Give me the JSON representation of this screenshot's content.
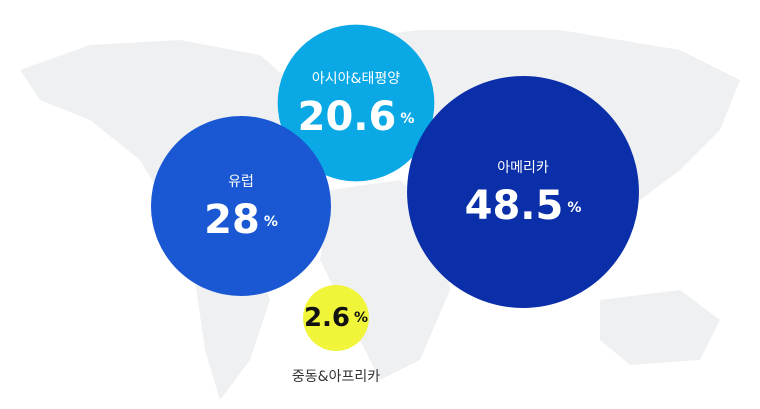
{
  "chart_data": {
    "type": "bubble",
    "unit": "%",
    "categories": [
      "아시아&태평양",
      "유럽",
      "아메리카",
      "중동&아프리카"
    ],
    "values": [
      20.6,
      28,
      48.5,
      2.6
    ],
    "colors": [
      "#0aa9e6",
      "#1a57d3",
      "#0a2fa8",
      "#f0f53a"
    ]
  }
}
